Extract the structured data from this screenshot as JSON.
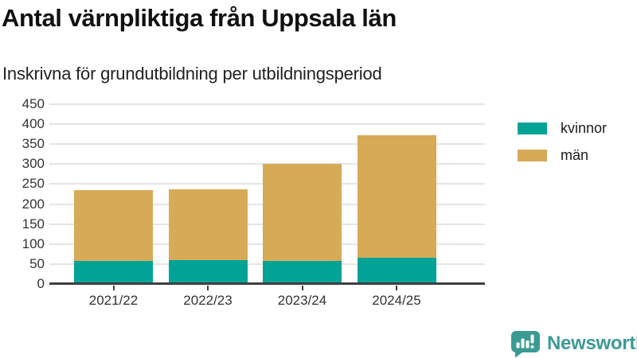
{
  "title": "Antal värnpliktiga från Uppsala län",
  "subtitle": "Inskrivna för grundutbildning per utbildningsperiod",
  "chart_data": {
    "type": "bar",
    "stacked": true,
    "title": "Antal värnpliktiga från Uppsala län",
    "subtitle": "Inskrivna för grundutbildning per utbildningsperiod",
    "categories": [
      "2021/22",
      "2022/23",
      "2023/24",
      "2024/25"
    ],
    "series": [
      {
        "name": "kvinnor",
        "color": "#00a396",
        "values": [
          57,
          59,
          57,
          65
        ]
      },
      {
        "name": "män",
        "color": "#d7aa58",
        "values": [
          177,
          177,
          243,
          307
        ]
      }
    ],
    "totals": [
      234,
      236,
      300,
      372
    ],
    "xlabel": "",
    "ylabel": "",
    "ylim": [
      0,
      450
    ],
    "ytick_step": 50,
    "yticks": [
      0,
      50,
      100,
      150,
      200,
      250,
      300,
      350,
      400,
      450
    ],
    "grid": true,
    "legend_position": "right"
  },
  "legend": {
    "items": [
      {
        "label": "kvinnor",
        "color": "#00a396"
      },
      {
        "label": "män",
        "color": "#d7aa58"
      }
    ]
  },
  "branding": {
    "logo_text": "Newsworthy",
    "logo_color": "#3b9a94"
  },
  "colors": {
    "background": "#ffffff",
    "grid": "#e5e5e5",
    "axis": "#3f3f3f",
    "tick_text": "#333333",
    "title_text": "#111111"
  }
}
